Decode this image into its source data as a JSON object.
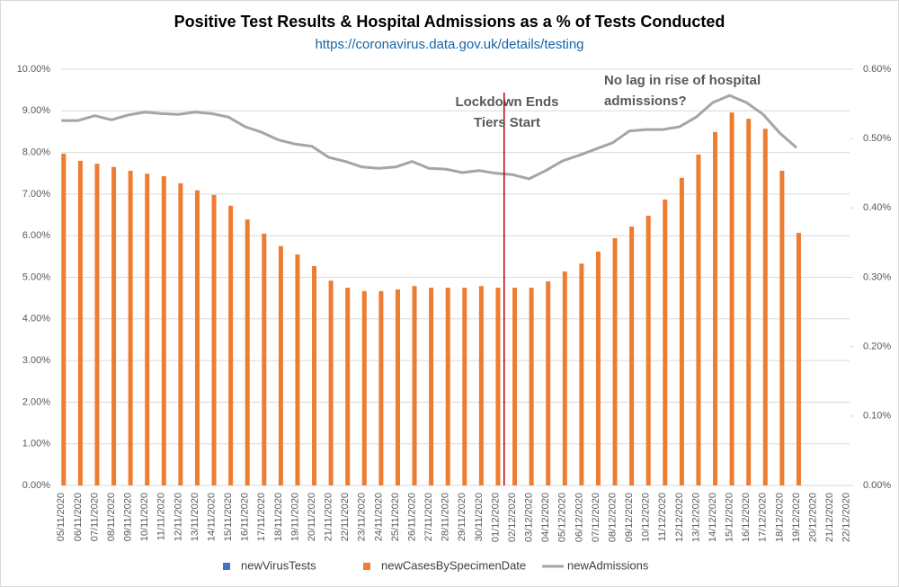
{
  "chart_data": {
    "type": "bar",
    "title": "Positive Test Results & Hospital Admissions as a % of Tests Conducted",
    "subtitle": "https://coronavirus.data.gov.uk/details/testing",
    "categories": [
      "05/11/2020",
      "06/11/2020",
      "07/11/2020",
      "08/11/2020",
      "09/11/2020",
      "10/11/2020",
      "11/11/2020",
      "12/11/2020",
      "13/11/2020",
      "14/11/2020",
      "15/11/2020",
      "16/11/2020",
      "17/11/2020",
      "18/11/2020",
      "19/11/2020",
      "20/11/2020",
      "21/11/2020",
      "22/11/2020",
      "23/11/2020",
      "24/11/2020",
      "25/11/2020",
      "26/11/2020",
      "27/11/2020",
      "28/11/2020",
      "29/11/2020",
      "30/11/2020",
      "01/12/2020",
      "02/12/2020",
      "03/12/2020",
      "04/12/2020",
      "05/12/2020",
      "06/12/2020",
      "07/12/2020",
      "08/12/2020",
      "09/12/2020",
      "10/12/2020",
      "11/12/2020",
      "12/12/2020",
      "13/12/2020",
      "14/12/2020",
      "15/12/2020",
      "16/12/2020",
      "17/12/2020",
      "18/12/2020",
      "19/12/2020",
      "20/12/2020",
      "21/12/2020",
      "22/12/2020"
    ],
    "series": [
      {
        "name": "newVirusTests",
        "color": "#4472c4",
        "type": "bar",
        "values": [
          null,
          null,
          null,
          null,
          null,
          null,
          null,
          null,
          null,
          null,
          null,
          null,
          null,
          null,
          null,
          null,
          null,
          null,
          null,
          null,
          null,
          null,
          null,
          null,
          null,
          null,
          null,
          null,
          null,
          null,
          null,
          null,
          null,
          null,
          null,
          null,
          null,
          null,
          null,
          null,
          null,
          null,
          null,
          null,
          null,
          null,
          null,
          null
        ]
      },
      {
        "name": "newCasesBySpecimenDate",
        "color": "#ed7d31",
        "type": "bar",
        "values": [
          7.97,
          7.8,
          7.73,
          7.65,
          7.56,
          7.49,
          7.43,
          7.26,
          7.09,
          6.98,
          6.72,
          6.39,
          6.05,
          5.75,
          5.55,
          5.27,
          4.92,
          4.75,
          4.67,
          4.67,
          4.71,
          4.79,
          4.75,
          4.75,
          4.75,
          4.79,
          4.75,
          4.75,
          4.75,
          4.9,
          5.14,
          5.33,
          5.62,
          5.94,
          6.22,
          6.48,
          6.87,
          7.39,
          7.95,
          8.49,
          8.96,
          8.81,
          8.57,
          7.56,
          6.07,
          null,
          null,
          null
        ]
      },
      {
        "name": "newAdmissions",
        "color": "#a5a5a5",
        "type": "line",
        "axis": "y2",
        "values": [
          0.526,
          0.526,
          0.533,
          0.527,
          0.534,
          0.538,
          0.536,
          0.535,
          0.538,
          0.536,
          0.531,
          0.517,
          0.509,
          0.498,
          0.492,
          0.489,
          0.473,
          0.467,
          0.459,
          0.457,
          0.459,
          0.467,
          0.457,
          0.456,
          0.451,
          0.454,
          0.45,
          0.448,
          0.442,
          0.454,
          0.468,
          0.476,
          0.485,
          0.494,
          0.511,
          0.513,
          0.513,
          0.517,
          0.531,
          0.552,
          0.562,
          0.552,
          0.535,
          0.508,
          0.487,
          null,
          null,
          null
        ]
      }
    ],
    "ylim": [
      0,
      10
    ],
    "yticks": [
      {
        "value": 0,
        "label": "0.00%"
      },
      {
        "value": 1,
        "label": "1.00%"
      },
      {
        "value": 2,
        "label": "2.00%"
      },
      {
        "value": 3,
        "label": "3.00%"
      },
      {
        "value": 4,
        "label": "4.00%"
      },
      {
        "value": 5,
        "label": "5.00%"
      },
      {
        "value": 6,
        "label": "6.00%"
      },
      {
        "value": 7,
        "label": "7.00%"
      },
      {
        "value": 8,
        "label": "8.00%"
      },
      {
        "value": 9,
        "label": "9.00%"
      },
      {
        "value": 10,
        "label": "10.00%"
      }
    ],
    "y2lim": [
      0,
      0.6
    ],
    "y2ticks": [
      {
        "value": 0,
        "label": "0.00%"
      },
      {
        "value": 0.1,
        "label": "0.10%"
      },
      {
        "value": 0.2,
        "label": "0.20%"
      },
      {
        "value": 0.3,
        "label": "0.30%"
      },
      {
        "value": 0.4,
        "label": "0.40%"
      },
      {
        "value": 0.5,
        "label": "0.50%"
      },
      {
        "value": 0.6,
        "label": "0.60%"
      }
    ],
    "grid": true,
    "legend": "bottom",
    "annotations": [
      {
        "text": [
          "Lockdown Ends",
          "Tiers Start"
        ],
        "color": "#d9262a"
      },
      {
        "text": [
          "No lag in rise of hospital",
          "admissions?"
        ],
        "color": "#d9262a"
      }
    ]
  }
}
